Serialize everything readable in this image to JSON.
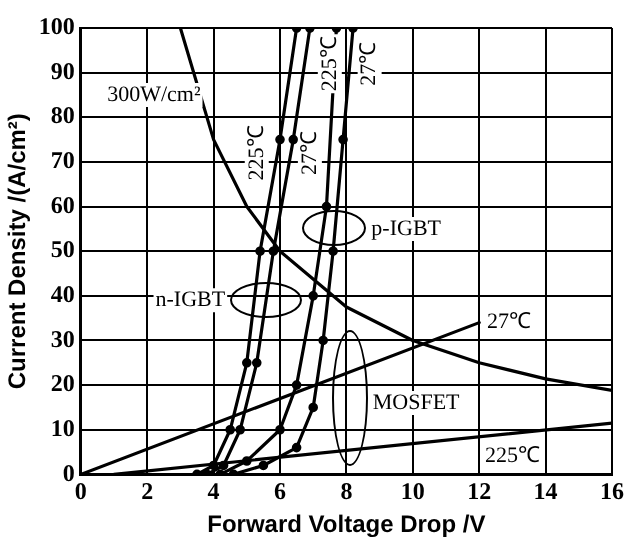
{
  "chart_data": {
    "type": "line",
    "xlabel": "Forward Voltage Drop /V",
    "ylabel": "Current Density /(A/cm²)",
    "xlim": [
      0,
      16
    ],
    "xticks": [
      0,
      2,
      4,
      6,
      8,
      10,
      12,
      14,
      16
    ],
    "ylim": [
      0,
      100
    ],
    "yticks": [
      0,
      10,
      20,
      30,
      40,
      50,
      60,
      70,
      80,
      90,
      100
    ],
    "grid": true,
    "legend": false,
    "line_style": "solid",
    "series": [
      {
        "color": "#000000",
        "marker": "none",
        "x": [
          3,
          4,
          5,
          6,
          8,
          10,
          12,
          14,
          16
        ],
        "values": [
          100,
          75,
          60,
          50,
          37.5,
          30,
          25,
          21.4,
          18.8
        ]
      },
      {
        "color": "#000000",
        "marker": "none",
        "x": [
          0,
          12
        ],
        "values": [
          0,
          34
        ]
      },
      {
        "color": "#000000",
        "marker": "none",
        "x": [
          1,
          16
        ],
        "values": [
          0,
          11.5
        ]
      },
      {
        "color": "#000000",
        "marker": "circle",
        "x": [
          3.5,
          4,
          4.5,
          5,
          5.4,
          6,
          6.5
        ],
        "values": [
          0,
          2,
          10,
          25,
          50,
          75,
          100
        ]
      },
      {
        "color": "#000000",
        "marker": "circle",
        "x": [
          3.8,
          4.3,
          4.8,
          5.3,
          5.8,
          6.4,
          6.9
        ],
        "values": [
          0,
          2,
          10,
          25,
          50,
          75,
          100
        ]
      },
      {
        "color": "#000000",
        "marker": "circle",
        "x": [
          4.2,
          5,
          6,
          6.5,
          7,
          7.4,
          7.7
        ],
        "values": [
          0,
          3,
          10,
          20,
          40,
          60,
          100
        ]
      },
      {
        "color": "#000000",
        "marker": "circle",
        "x": [
          4.6,
          5.5,
          6.5,
          7,
          7.3,
          7.6,
          7.9,
          8.2
        ],
        "values": [
          0,
          2,
          6,
          15,
          30,
          50,
          75,
          100
        ]
      }
    ],
    "annotations": [
      "300W/cm²",
      {
        "text": "225℃",
        "x": 5.3,
        "y": 72
      },
      {
        "text": "27℃",
        "x": 6.9,
        "y": 72
      },
      {
        "text": "225℃",
        "x": 7.5,
        "y": 92
      },
      {
        "text": "27℃",
        "x": 8.7,
        "y": 92
      },
      {
        "text": "p-IGBT",
        "x": 9.8,
        "y": 55
      },
      {
        "text": "n-IGBT",
        "x": 3.3,
        "y": 39
      },
      "MOSFET",
      {
        "text": "27℃",
        "x": 12.9,
        "y": 34
      },
      {
        "text": "225℃",
        "x": 13,
        "y": 4
      }
    ]
  }
}
